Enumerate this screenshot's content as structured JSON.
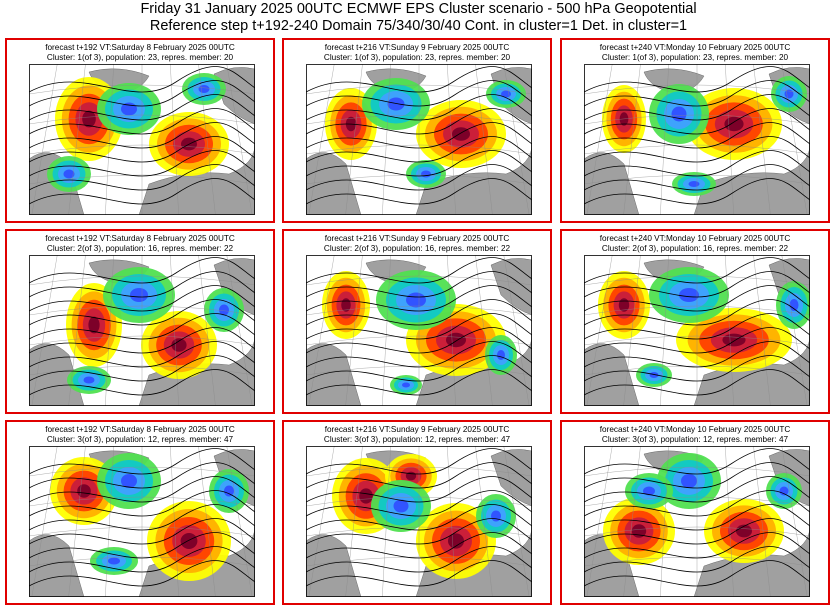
{
  "header": {
    "line1": "Friday 31 January 2025 00UTC ECMWF EPS Cluster scenario - 500 hPa Geopotential",
    "line2": "Reference step t+192-240 Domain 75/340/30/40 Cont. in cluster=1 Det. in cluster=1"
  },
  "colors": {
    "frame": "#e00000",
    "land": "#a0a0a0",
    "ocean": "#ffffff",
    "contour": "#000000",
    "anomaly_positive": [
      "#ffff00",
      "#ffb000",
      "#ff4000",
      "#c81e3c",
      "#780028"
    ],
    "anomaly_negative": [
      "#50e050",
      "#10c8c8",
      "#40a0ff",
      "#3050ff"
    ]
  },
  "panels": [
    [
      {
        "forecast": "forecast t+192 VT:Saturday 8 February 2025 00UTC",
        "cluster": "Cluster: 1(of 3), population: 23, repres. member: 20"
      },
      {
        "forecast": "forecast t+216 VT:Sunday 9 February 2025 00UTC",
        "cluster": "Cluster: 1(of 3), population: 23, repres. member: 20"
      },
      {
        "forecast": "forecast t+240 VT:Monday 10 February 2025 00UTC",
        "cluster": "Cluster: 1(of 3), population: 23, repres. member: 20"
      }
    ],
    [
      {
        "forecast": "forecast t+192 VT:Saturday 8 February 2025 00UTC",
        "cluster": "Cluster: 2(of 3), population: 16, repres. member: 22"
      },
      {
        "forecast": "forecast t+216 VT:Sunday 9 February 2025 00UTC",
        "cluster": "Cluster: 2(of 3), population: 16, repres. member: 22"
      },
      {
        "forecast": "forecast t+240 VT:Monday 10 February 2025 00UTC",
        "cluster": "Cluster: 2(of 3), population: 16, repres. member: 22"
      }
    ],
    [
      {
        "forecast": "forecast t+192 VT:Saturday 8 February 2025 00UTC",
        "cluster": "Cluster: 3(of 3), population: 12, repres. member: 47"
      },
      {
        "forecast": "forecast t+216 VT:Sunday 9 February 2025 00UTC",
        "cluster": "Cluster: 3(of 3), population: 12, repres. member: 47"
      },
      {
        "forecast": "forecast t+240 VT:Monday 10 February 2025 00UTC",
        "cluster": "Cluster: 3(of 3), population: 12, repres. member: 47"
      }
    ]
  ]
}
